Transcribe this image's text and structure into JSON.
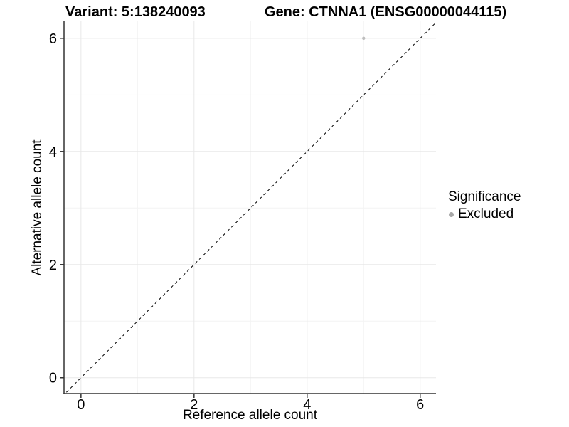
{
  "chart_data": {
    "type": "scatter",
    "titles": {
      "variant": "Variant: 5:138240093",
      "gene": "Gene: CTNNA1 (ENSG00000044115)"
    },
    "xlabel": "Reference allele count",
    "ylabel": "Alternative allele count",
    "xlim": [
      -0.3,
      6.28
    ],
    "ylim": [
      -0.28,
      6.3
    ],
    "x_ticks": [
      0,
      2,
      4,
      6
    ],
    "y_ticks": [
      0,
      2,
      4,
      6
    ],
    "x_minor_gridlines": [
      1,
      3,
      5
    ],
    "y_minor_gridlines": [
      1,
      3,
      5
    ],
    "points": [
      {
        "x": 5,
        "y": 6,
        "significance": "Excluded",
        "color": "#bebebe",
        "radius": 2.2
      }
    ],
    "identity_line": {
      "slope": 1,
      "intercept": 0,
      "linetype": "dashed",
      "color": "#000000"
    },
    "legend": {
      "title": "Significance",
      "position": "right",
      "entries": [
        {
          "label": "Excluded",
          "color": "#a8a8a8"
        }
      ]
    },
    "grid": "on",
    "colors": {
      "background": "#ffffff",
      "major_grid": "#e8e8e8",
      "minor_grid": "#f3f3f3",
      "axis_line": "#333333",
      "tick_mark": "#333333",
      "text": "#000000"
    }
  }
}
